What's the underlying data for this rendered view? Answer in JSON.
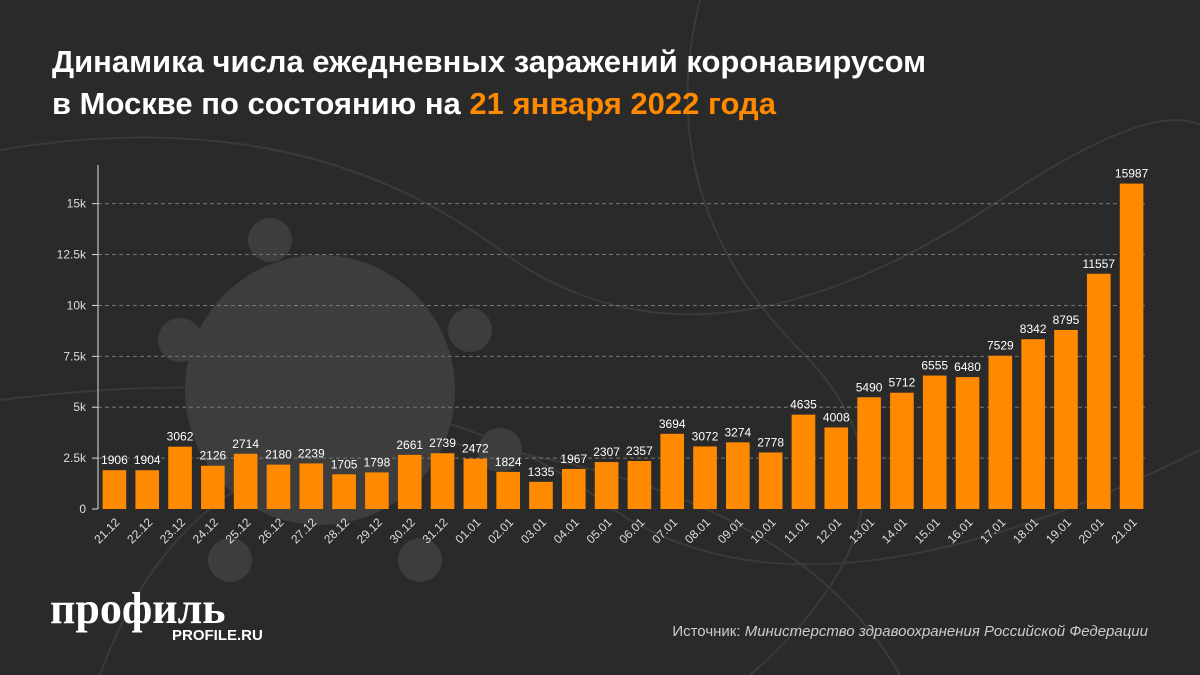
{
  "chart_data": {
    "type": "bar",
    "title": [
      "Динамика числа ежедневных заражений коронавирусом в Москве по состоянию на",
      "21 января 2022 года"
    ],
    "categories": [
      "21.12",
      "22.12",
      "23.12",
      "24.12",
      "25.12",
      "26.12",
      "27.12",
      "28.12",
      "29.12",
      "30.12",
      "31.12",
      "01.01",
      "02.01",
      "03.01",
      "04.01",
      "05.01",
      "06.01",
      "07.01",
      "08.01",
      "09.01",
      "10.01",
      "11.01",
      "12.01",
      "13.01",
      "14.01",
      "15.01",
      "16.01",
      "17.01",
      "18.01",
      "19.01",
      "20.01",
      "21.01"
    ],
    "values": [
      1906,
      1904,
      3062,
      2126,
      2714,
      2180,
      2239,
      1705,
      1798,
      2661,
      2739,
      2472,
      1824,
      1335,
      1967,
      2307,
      2357,
      3694,
      3072,
      3274,
      2778,
      4635,
      4008,
      5490,
      5712,
      6555,
      6480,
      7529,
      8342,
      8795,
      11557,
      15987
    ],
    "color": "#ff8a00",
    "ylim": [
      0,
      16900
    ],
    "yticks": [
      0,
      {
        "value": 2500,
        "label": "2.5k"
      },
      {
        "value": 5000,
        "label": "5k"
      },
      {
        "value": 7500,
        "label": "7.5k"
      },
      {
        "value": 10000,
        "label": "10k"
      },
      {
        "value": 12500,
        "label": "12.5k"
      },
      {
        "value": 15000,
        "label": "15k"
      }
    ],
    "grid": true,
    "logo": "профиль",
    "logo_sub": "PROFILE.RU",
    "source": [
      "Источник:",
      "Министерство здравоохранения Российской Федерации"
    ]
  }
}
